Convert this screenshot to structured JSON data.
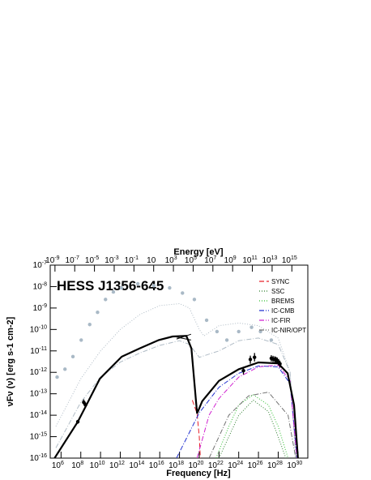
{
  "chart_data": {
    "type": "line",
    "title": "HESS J1356-645",
    "xlabel": "Frequency [Hz]",
    "ylabel": "νFν (ν) [erg s-1 cm-2]",
    "log_x": true,
    "log_y": true,
    "legend_position": "top-right",
    "xlim": [
      80000.0,
      1e+31
    ],
    "xticks": [
      {
        "value": 1000000.0,
        "label": "106"
      },
      {
        "value": 100000000.0,
        "label": "108"
      },
      {
        "value": 10000000000.0,
        "label": "1010"
      },
      {
        "value": 1000000000000.0,
        "label": "1012"
      },
      {
        "value": 100000000000000.0,
        "label": "1014"
      },
      {
        "value": 1e+16,
        "label": "1016"
      },
      {
        "value": 1e+18,
        "label": "1018"
      },
      {
        "value": 1e+20,
        "label": "1020"
      },
      {
        "value": 1e+22,
        "label": "1022"
      },
      {
        "value": 1e+24,
        "label": "1024"
      },
      {
        "value": 1e+26,
        "label": "1026"
      },
      {
        "value": 1e+28,
        "label": "1028"
      },
      {
        "value": 1e+30,
        "label": "1030"
      }
    ],
    "ylim": [
      1e-16,
      1e-07
    ],
    "yticks": [
      {
        "value": 1e-16,
        "label": "10-16"
      },
      {
        "value": 1e-15,
        "label": "10-15"
      },
      {
        "value": 1e-14,
        "label": "10-14"
      },
      {
        "value": 1e-13,
        "label": "10-13"
      },
      {
        "value": 1e-12,
        "label": "10-12"
      },
      {
        "value": 1e-11,
        "label": "10-11"
      },
      {
        "value": 1e-10,
        "label": "10-10"
      },
      {
        "value": 1e-09,
        "label": "10-9"
      },
      {
        "value": 1e-08,
        "label": "10-8"
      },
      {
        "value": 1e-07,
        "label": "10-7"
      }
    ],
    "top_axis": {
      "label": "Energy [eV]",
      "xlim": [
        3.3e-10,
        4.14e+16
      ],
      "xticks": [
        {
          "value": 1e-09,
          "label": "10-9"
        },
        {
          "value": 1e-07,
          "label": "10-7"
        },
        {
          "value": 1e-05,
          "label": "10-5"
        },
        {
          "value": 0.001,
          "label": "10-3"
        },
        {
          "value": 0.1,
          "label": "10-1"
        },
        10,
        {
          "value": 1000.0,
          "label": "103"
        },
        {
          "value": 100000.0,
          "label": "105"
        },
        {
          "value": 10000000.0,
          "label": "107"
        },
        {
          "value": 1000000000.0,
          "label": "109"
        },
        {
          "value": 100000000000.0,
          "label": "1011"
        },
        {
          "value": 10000000000000.0,
          "label": "1013"
        },
        {
          "value": 1000000000000000.0,
          "label": "1015"
        }
      ]
    },
    "series": [
      {
        "kind": "scatter",
        "color": "#a9b9c6",
        "x": [
          400000.0,
          2500000.0,
          16000000.0,
          110000000.0,
          800000000.0,
          5000000000.0,
          32000000000.0,
          200000000000.0,
          1300000000000.0,
          60000000000000.0,
          2500000000000000.0,
          1e+17,
          2e+18,
          3.2e+19,
          5.6e+20,
          6.3e+21,
          6.3e+22,
          1e+24,
          2e+25,
          1.6e+26,
          2e+27
        ],
        "values": [
          6e-13,
          1.4e-12,
          5.4e-12,
          3.2e-11,
          1.7e-10,
          6.3e-10,
          2.5e-09,
          5.6e-09,
          8.7e-09,
          1.35e-08,
          1.1e-08,
          8.7e-09,
          5e-09,
          2.5e-09,
          2.7e-10,
          8e-11,
          3.2e-11,
          8e-11,
          1.26e-10,
          8e-11,
          3.2e-11
        ]
      },
      {
        "kind": "line",
        "color": "#b0bcc6",
        "dash": "1,2",
        "x": [
          300000.0,
          100000000.0,
          10000000000.0,
          1000000000000.0,
          100000000000000.0,
          1e+16,
          1e+18,
          1e+19,
          1e+20,
          3e+20,
          1e+22,
          1e+24,
          1e+26,
          1e+28,
          1.6e+29,
          6e+29
        ],
        "values": [
          3e-15,
          5e-13,
          1e-11,
          1e-10,
          5e-10,
          1.3e-09,
          1.6e-09,
          1e-09,
          1e-10,
          5e-11,
          1.5e-10,
          2e-10,
          1.5e-10,
          4e-11,
          1e-12,
          1e-16
        ]
      },
      {
        "kind": "line",
        "color": "#b0bcc6",
        "dash": "6,2,1,2",
        "x": [
          300000.0,
          100000000.0,
          10000000000.0,
          1000000000000.0,
          100000000000000.0,
          1e+16,
          1e+18,
          1e+19,
          1e+20,
          1e+22,
          1e+24,
          1e+26,
          1e+28,
          1.6e+29,
          6e+29
        ],
        "values": [
          3e-16,
          4e-14,
          6e-13,
          3e-12,
          8e-12,
          1.8e-11,
          3e-11,
          2e-11,
          5e-12,
          1e-11,
          3e-11,
          4e-11,
          2e-11,
          1e-12,
          1e-16
        ]
      },
      {
        "kind": "line",
        "name": "SYNC",
        "color": "#e8202a",
        "dash": "6,3",
        "x": [
          2e+19,
          6e+19,
          1e+20,
          1.3e+20
        ],
        "values": [
          5e-14,
          1.2e-14,
          1e-15,
          1e-16
        ]
      },
      {
        "kind": "line",
        "name": "SSC",
        "color": "#2f7f2f",
        "dash": "1,2",
        "x": [
          1e+22,
          1e+23,
          1e+24,
          3e+25,
          1e+27,
          1e+28,
          6e+28
        ],
        "values": [
          1e-16,
          1e-15,
          1e-14,
          5e-14,
          1.5e-14,
          1e-15,
          1e-16
        ]
      },
      {
        "kind": "line",
        "name": "BREMS",
        "color": "#30c030",
        "dash": "1,2",
        "x": [
          5e+21,
          1e+23,
          1e+24,
          3e+25,
          1e+27,
          1e+28,
          1e+29
        ],
        "values": [
          1e-16,
          3e-15,
          3e-14,
          9e-14,
          3e-14,
          3e-15,
          1e-16
        ]
      },
      {
        "kind": "line",
        "name": "IC-CMB",
        "color": "#2030d0",
        "dash": "6,2,1,2",
        "x": [
          5e+17,
          1e+20,
          1e+22,
          1e+24,
          1e+26,
          1e+28,
          1.6e+29,
          8e+29
        ],
        "values": [
          1e-16,
          1.3e-14,
          2e-13,
          9e-13,
          2e-12,
          1.8e-12,
          3e-13,
          1e-16
        ]
      },
      {
        "kind": "line",
        "name": "IC-FIR",
        "color": "#d020d0",
        "dash": "6,2,1,2",
        "x": [
          6e+19,
          1e+21,
          1e+22,
          1e+24,
          1e+26,
          1e+28,
          1.6e+29,
          8e+29
        ],
        "values": [
          1e-16,
          1e-14,
          6e-14,
          6e-13,
          1.8e-12,
          2.2e-12,
          4e-13,
          1e-16
        ]
      },
      {
        "kind": "line",
        "name": "IC-NIR/OPT",
        "color": "#707070",
        "dash": "6,2,1,2",
        "x": [
          1e+21,
          1e+23,
          1e+25,
          1e+27,
          1e+29,
          6e+29
        ],
        "values": [
          1e-16,
          1e-14,
          8e-14,
          1.2e-13,
          1e-14,
          1e-16
        ]
      },
      {
        "kind": "line",
        "color": "#000000",
        "width": 2.2,
        "x": [
          220000.0,
          50000000.0,
          300000000.0,
          8500000000.0,
          1400000000000.0,
          90000000000000.0,
          8000000000000000.0,
          2e+17,
          5e+18,
          1.6e+19,
          6e+19,
          2e+20,
          1e+22,
          1e+24,
          1e+26,
          1e+28,
          9e+28,
          4e+29,
          1e+30
        ],
        "values": [
          1e-16,
          5e-15,
          2.5e-14,
          5e-13,
          5.4e-12,
          1.3e-11,
          3.2e-11,
          4.7e-11,
          5e-11,
          1.3e-11,
          1.2e-14,
          4.5e-14,
          4e-13,
          1.4e-12,
          2.9e-12,
          2.6e-12,
          9e-13,
          3e-14,
          1e-16
        ]
      },
      {
        "kind": "line",
        "color": "#000000",
        "x": [
          5e+17,
          1.5e+19
        ],
        "values": [
          3.6e-11,
          6e-11
        ]
      },
      {
        "kind": "line",
        "color": "#000000",
        "x": [
          5e+17,
          1.5e+19
        ],
        "values": [
          4.4e-11,
          3.2e-11
        ]
      },
      {
        "kind": "errorbar",
        "color": "#000000",
        "x": [
          50000000.0,
          200000000.0,
          300000000.0,
          3e+24,
          1.5e+25,
          4e+25,
          2e+27,
          3e+27,
          4.5e+27,
          6e+27,
          8e+27,
          1.1e+28,
          1.5e+28
        ],
        "values": [
          5e-15,
          4e-14,
          3e-14,
          1.2e-12,
          4e-12,
          5e-12,
          4.5e-12,
          4.2e-12,
          4e-12,
          3.8e-12,
          3.5e-12,
          3e-12,
          2.5e-12
        ],
        "low": [
          4e-15,
          3e-14,
          2.3e-14,
          8e-13,
          2.5e-12,
          3.2e-12,
          3.2e-12,
          3e-12,
          2.9e-12,
          2.7e-12,
          2.5e-12,
          2.1e-12,
          1.7e-12
        ],
        "high": [
          6e-15,
          5.5e-14,
          4e-14,
          1.8e-12,
          6e-12,
          8e-12,
          6.3e-12,
          5.9e-12,
          5.6e-12,
          5.3e-12,
          4.9e-12,
          4.2e-12,
          3.5e-12
        ]
      }
    ]
  }
}
